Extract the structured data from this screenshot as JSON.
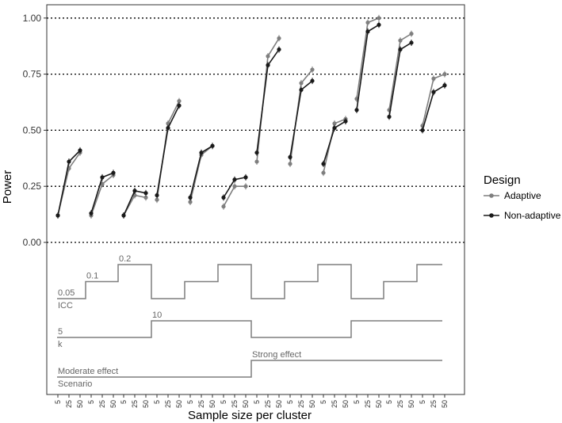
{
  "chart_data": {
    "type": "line",
    "ylabel": "Power",
    "xlabel": "Sample size per cluster",
    "ylim": [
      -0.1,
      1.05
    ],
    "yticks": [
      "0.00",
      "0.25",
      "0.50",
      "0.75",
      "1.00"
    ],
    "yticks_values": [
      0,
      0.25,
      0.5,
      0.75,
      1.0
    ],
    "sample_sizes": [
      "5",
      "25",
      "50"
    ],
    "grid": "horizontal dotted at y ticks",
    "legend": {
      "title": "Design",
      "position": "right",
      "entries": [
        "Adaptive",
        "Non-adaptive"
      ]
    },
    "series": [
      {
        "name": "Adaptive",
        "color": "#7f7f7f",
        "values": [
          [
            0.12,
            0.33,
            0.4
          ],
          [
            0.12,
            0.26,
            0.3
          ],
          [
            0.12,
            0.21,
            0.2
          ],
          [
            0.19,
            0.53,
            0.63
          ],
          [
            0.18,
            0.39,
            0.43
          ],
          [
            0.16,
            0.25,
            0.25
          ],
          [
            0.36,
            0.83,
            0.91
          ],
          [
            0.35,
            0.71,
            0.77
          ],
          [
            0.31,
            0.53,
            0.55
          ],
          [
            0.64,
            0.98,
            1.0
          ],
          [
            0.59,
            0.9,
            0.93
          ],
          [
            0.52,
            0.73,
            0.75
          ]
        ]
      },
      {
        "name": "Non-adaptive",
        "color": "#1a1a1a",
        "values": [
          [
            0.12,
            0.36,
            0.41
          ],
          [
            0.13,
            0.29,
            0.31
          ],
          [
            0.12,
            0.23,
            0.22
          ],
          [
            0.21,
            0.51,
            0.61
          ],
          [
            0.2,
            0.4,
            0.43
          ],
          [
            0.2,
            0.28,
            0.29
          ],
          [
            0.4,
            0.79,
            0.86
          ],
          [
            0.38,
            0.68,
            0.72
          ],
          [
            0.35,
            0.51,
            0.54
          ],
          [
            0.59,
            0.94,
            0.97
          ],
          [
            0.56,
            0.86,
            0.89
          ],
          [
            0.5,
            0.67,
            0.7
          ]
        ]
      }
    ],
    "nested_loop": {
      "ICC": {
        "label": "ICC",
        "values": [
          "0.05",
          "0.1",
          "0.2",
          "0.05",
          "0.1",
          "0.2",
          "0.05",
          "0.1",
          "0.2",
          "0.05",
          "0.1",
          "0.2"
        ],
        "level_labels": [
          "0.05",
          "0.1",
          "0.2"
        ]
      },
      "k": {
        "label": "k",
        "values": [
          "5",
          "5",
          "5",
          "10",
          "10",
          "10",
          "5",
          "5",
          "5",
          "10",
          "10",
          "10"
        ],
        "level_labels": [
          "5",
          "10"
        ]
      },
      "Scenario": {
        "label": "Scenario",
        "values": [
          "Moderate effect",
          "Moderate effect",
          "Moderate effect",
          "Moderate effect",
          "Moderate effect",
          "Moderate effect",
          "Strong effect",
          "Strong effect",
          "Strong effect",
          "Strong effect",
          "Strong effect",
          "Strong effect"
        ],
        "level_labels": [
          "Moderate effect",
          "Strong effect"
        ]
      }
    }
  }
}
